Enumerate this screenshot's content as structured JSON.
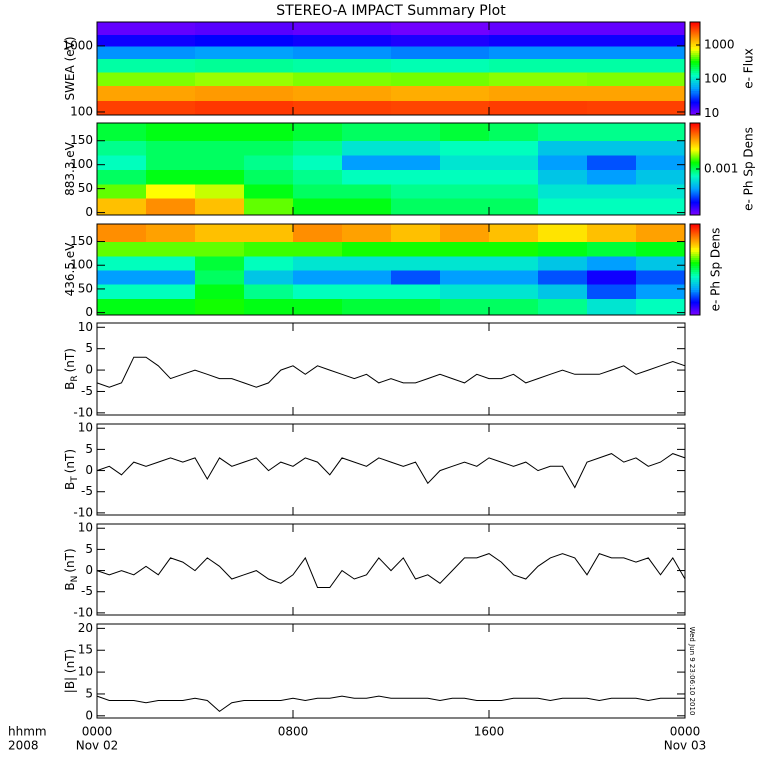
{
  "title": "STEREO-A IMPACT Summary Plot",
  "stamp": "Wed Jun  9 23:06:10 2010",
  "x_axis": {
    "xlim": [
      0,
      24
    ],
    "xticks": [
      {
        "value": 0,
        "label": "0000"
      },
      {
        "value": 8,
        "label": "0800"
      },
      {
        "value": 16,
        "label": "1600"
      },
      {
        "value": 24,
        "label": "0000"
      }
    ],
    "date_labels": [
      {
        "value": 0,
        "label": "Nov 02"
      },
      {
        "value": 24,
        "label": "Nov 03"
      }
    ],
    "left_labels": [
      "hhmm",
      "2008"
    ]
  },
  "colormap": [
    "#8000ff",
    "#0000ff",
    "#00a0ff",
    "#00ffc0",
    "#00ff00",
    "#ffff00",
    "#ff8000",
    "#ff0000"
  ],
  "chart_data": [
    {
      "type": "heatmap",
      "ylabel": "SWEA (eV)",
      "ylog": true,
      "ylim": [
        90,
        2300
      ],
      "yticks": [
        100,
        1000
      ],
      "x_edges": [
        0,
        4,
        8,
        12,
        16,
        20,
        24
      ],
      "y_edges": [
        90,
        150,
        250,
        400,
        650,
        1000,
        1500,
        2300
      ],
      "z": [
        [
          3000,
          3200,
          3000,
          2900,
          3100,
          3000
        ],
        [
          1500,
          1600,
          1500,
          1400,
          1500,
          1500
        ],
        [
          500,
          550,
          500,
          480,
          520,
          500
        ],
        [
          150,
          160,
          150,
          140,
          150,
          150
        ],
        [
          50,
          55,
          50,
          45,
          50,
          50
        ],
        [
          20,
          22,
          20,
          18,
          20,
          20
        ],
        [
          11,
          12,
          11,
          10,
          11,
          11
        ]
      ],
      "colorbar": {
        "label": "e- Flux",
        "log": true,
        "zlim": [
          9,
          4700
        ],
        "zticks": [
          10,
          100,
          1000
        ]
      }
    },
    {
      "type": "heatmap",
      "ylabel": "883.3 eV",
      "ylim": [
        -5,
        187
      ],
      "yticks": [
        0,
        50,
        100,
        150
      ],
      "x_edges": [
        0,
        2,
        4,
        6,
        8,
        10,
        12,
        14,
        16,
        18,
        20,
        22,
        24
      ],
      "y_edges": [
        -5,
        30,
        60,
        90,
        120,
        150,
        187
      ],
      "z": [
        [
          0.0025,
          0.003,
          0.0025,
          0.0015,
          0.0012,
          0.0012,
          0.001,
          0.001,
          0.001,
          0.0008,
          0.0008,
          0.0008
        ],
        [
          0.0015,
          0.002,
          0.0018,
          0.0012,
          0.001,
          0.001,
          0.0009,
          0.0009,
          0.0009,
          0.0007,
          0.0007,
          0.0007
        ],
        [
          0.001,
          0.0012,
          0.0012,
          0.001,
          0.0009,
          0.0008,
          0.0008,
          0.0008,
          0.0008,
          0.0006,
          0.0005,
          0.0006
        ],
        [
          0.0008,
          0.001,
          0.001,
          0.0009,
          0.0008,
          0.0005,
          0.0005,
          0.0007,
          0.0007,
          0.0005,
          0.0004,
          0.0005
        ],
        [
          0.0009,
          0.001,
          0.001,
          0.001,
          0.0009,
          0.0007,
          0.0007,
          0.0008,
          0.0008,
          0.0006,
          0.0006,
          0.0006
        ],
        [
          0.0011,
          0.0012,
          0.0012,
          0.0012,
          0.0011,
          0.001,
          0.001,
          0.0011,
          0.001,
          0.0009,
          0.0009,
          0.0009
        ]
      ],
      "colorbar": {
        "label": "e- Ph Sp Dens",
        "log": true,
        "zlim": [
          0.0002,
          0.005
        ],
        "zticks": [
          0.001
        ]
      }
    },
    {
      "type": "heatmap",
      "ylabel": "436.5 eV",
      "ylim": [
        -5,
        187
      ],
      "yticks": [
        0,
        50,
        100,
        150
      ],
      "x_edges": [
        0,
        2,
        4,
        6,
        8,
        10,
        12,
        14,
        16,
        18,
        20,
        22,
        24
      ],
      "y_edges": [
        -5,
        30,
        60,
        90,
        120,
        150,
        187
      ],
      "z": [
        [
          0.0012,
          0.0012,
          0.0013,
          0.0012,
          0.0012,
          0.0011,
          0.0011,
          0.001,
          0.001,
          0.0009,
          0.0007,
          0.0008
        ],
        [
          0.0008,
          0.0008,
          0.0012,
          0.0009,
          0.0008,
          0.0008,
          0.0008,
          0.0007,
          0.0007,
          0.0006,
          0.0004,
          0.0005
        ],
        [
          0.0005,
          0.0005,
          0.001,
          0.0006,
          0.0005,
          0.0005,
          0.0004,
          0.0005,
          0.0005,
          0.0004,
          0.0003,
          0.0004
        ],
        [
          0.0008,
          0.0008,
          0.0011,
          0.0008,
          0.0007,
          0.0007,
          0.0007,
          0.0007,
          0.0007,
          0.0006,
          0.0005,
          0.0006
        ],
        [
          0.0015,
          0.0015,
          0.0015,
          0.0014,
          0.0014,
          0.0013,
          0.0013,
          0.0013,
          0.0013,
          0.0012,
          0.0011,
          0.0012
        ],
        [
          0.003,
          0.0028,
          0.0025,
          0.0025,
          0.003,
          0.0028,
          0.0025,
          0.0028,
          0.0025,
          0.0022,
          0.0025,
          0.0028
        ]
      ],
      "colorbar": {
        "label": "e- Ph Sp Dens",
        "log": true,
        "zlim": [
          0.0002,
          0.005
        ],
        "zticks": []
      }
    },
    {
      "type": "line",
      "ylabel": "B",
      "ylabel_sub": "R",
      "ylabel_unit": "(nT)",
      "ylim": [
        -10.5,
        11
      ],
      "yticks": [
        -10,
        -5,
        0,
        5,
        10
      ],
      "color": "#000000",
      "x": [
        0,
        0.5,
        1,
        1.5,
        2,
        2.5,
        3,
        3.5,
        4,
        4.5,
        5,
        5.5,
        6,
        6.5,
        7,
        7.5,
        8,
        8.5,
        9,
        9.5,
        10,
        10.5,
        11,
        11.5,
        12,
        12.5,
        13,
        13.5,
        14,
        14.5,
        15,
        15.5,
        16,
        16.5,
        17,
        17.5,
        18,
        18.5,
        19,
        19.5,
        20,
        20.5,
        21,
        21.5,
        22,
        22.5,
        23,
        23.5,
        24
      ],
      "values": [
        -3,
        -4,
        -3,
        3,
        3,
        1,
        -2,
        -1,
        0,
        -1,
        -2,
        -2,
        -3,
        -4,
        -3,
        0,
        1,
        -1,
        1,
        0,
        -1,
        -2,
        -1,
        -3,
        -2,
        -3,
        -3,
        -2,
        -1,
        -2,
        -3,
        -1,
        -2,
        -2,
        -1,
        -3,
        -2,
        -1,
        0,
        -1,
        -1,
        -1,
        0,
        1,
        -1,
        0,
        1,
        2,
        1
      ]
    },
    {
      "type": "line",
      "ylabel": "B",
      "ylabel_sub": "T",
      "ylabel_unit": "(nT)",
      "ylim": [
        -10.5,
        11
      ],
      "yticks": [
        -10,
        -5,
        0,
        5,
        10
      ],
      "color": "#000000",
      "x": [
        0,
        0.5,
        1,
        1.5,
        2,
        2.5,
        3,
        3.5,
        4,
        4.5,
        5,
        5.5,
        6,
        6.5,
        7,
        7.5,
        8,
        8.5,
        9,
        9.5,
        10,
        10.5,
        11,
        11.5,
        12,
        12.5,
        13,
        13.5,
        14,
        14.5,
        15,
        15.5,
        16,
        16.5,
        17,
        17.5,
        18,
        18.5,
        19,
        19.5,
        20,
        20.5,
        21,
        21.5,
        22,
        22.5,
        23,
        23.5,
        24
      ],
      "values": [
        0,
        1,
        -1,
        2,
        1,
        2,
        3,
        2,
        3,
        -2,
        3,
        1,
        2,
        3,
        0,
        2,
        1,
        3,
        2,
        -1,
        3,
        2,
        1,
        3,
        2,
        1,
        2,
        -3,
        0,
        1,
        2,
        1,
        3,
        2,
        1,
        2,
        0,
        1,
        1,
        -4,
        2,
        3,
        4,
        2,
        3,
        1,
        2,
        4,
        3
      ]
    },
    {
      "type": "line",
      "ylabel": "B",
      "ylabel_sub": "N",
      "ylabel_unit": "(nT)",
      "ylim": [
        -10.5,
        11
      ],
      "yticks": [
        -10,
        -5,
        0,
        5,
        10
      ],
      "color": "#000000",
      "x": [
        0,
        0.5,
        1,
        1.5,
        2,
        2.5,
        3,
        3.5,
        4,
        4.5,
        5,
        5.5,
        6,
        6.5,
        7,
        7.5,
        8,
        8.5,
        9,
        9.5,
        10,
        10.5,
        11,
        11.5,
        12,
        12.5,
        13,
        13.5,
        14,
        14.5,
        15,
        15.5,
        16,
        16.5,
        17,
        17.5,
        18,
        18.5,
        19,
        19.5,
        20,
        20.5,
        21,
        21.5,
        22,
        22.5,
        23,
        23.5,
        24
      ],
      "values": [
        0,
        -1,
        0,
        -1,
        1,
        -1,
        3,
        2,
        0,
        3,
        1,
        -2,
        -1,
        0,
        -2,
        -3,
        -1,
        3,
        -4,
        -4,
        0,
        -2,
        -1,
        3,
        0,
        3,
        -2,
        -1,
        -3,
        0,
        3,
        3,
        4,
        2,
        -1,
        -2,
        1,
        3,
        4,
        3,
        -1,
        4,
        3,
        3,
        2,
        3,
        -1,
        3,
        -2
      ]
    },
    {
      "type": "line",
      "ylabel": "|B| (nT)",
      "ylim": [
        -0.5,
        21
      ],
      "yticks": [
        0,
        5,
        10,
        15,
        20
      ],
      "color": "#000000",
      "x": [
        0,
        0.5,
        1,
        1.5,
        2,
        2.5,
        3,
        3.5,
        4,
        4.5,
        5,
        5.5,
        6,
        6.5,
        7,
        7.5,
        8,
        8.5,
        9,
        9.5,
        10,
        10.5,
        11,
        11.5,
        12,
        12.5,
        13,
        13.5,
        14,
        14.5,
        15,
        15.5,
        16,
        16.5,
        17,
        17.5,
        18,
        18.5,
        19,
        19.5,
        20,
        20.5,
        21,
        21.5,
        22,
        22.5,
        23,
        23.5,
        24
      ],
      "values": [
        4.5,
        3.5,
        3.5,
        3.5,
        3,
        3.5,
        3.5,
        3.5,
        4,
        3.5,
        1,
        3,
        3.5,
        3.5,
        3.5,
        3.5,
        4,
        3.5,
        4,
        4,
        4.5,
        4,
        4,
        4.5,
        4,
        4,
        4,
        4,
        3.5,
        4,
        4,
        3.5,
        3.5,
        3.5,
        4,
        4,
        4,
        3.5,
        4,
        4,
        4,
        3.5,
        4,
        4,
        4,
        3.5,
        4,
        4,
        4
      ]
    }
  ]
}
